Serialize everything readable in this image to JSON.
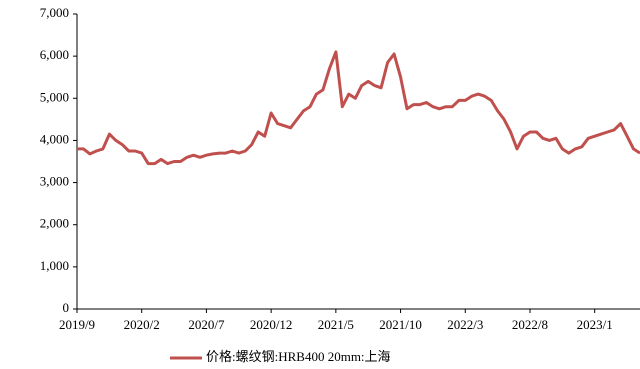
{
  "chart_data": {
    "type": "line",
    "categories": [
      "2019/9",
      null,
      null,
      null,
      null,
      null,
      null,
      null,
      null,
      null,
      "2020/2",
      null,
      null,
      null,
      null,
      null,
      null,
      null,
      null,
      null,
      "2020/7",
      null,
      null,
      null,
      null,
      null,
      null,
      null,
      null,
      null,
      "2020/12",
      null,
      null,
      null,
      null,
      null,
      null,
      null,
      null,
      null,
      "2021/5",
      null,
      null,
      null,
      null,
      null,
      null,
      null,
      null,
      null,
      "2021/10",
      null,
      null,
      null,
      null,
      null,
      null,
      null,
      null,
      null,
      "2022/3",
      null,
      null,
      null,
      null,
      null,
      null,
      null,
      null,
      null,
      "2022/8",
      null,
      null,
      null,
      null,
      null,
      null,
      null,
      null,
      null,
      "2023/1",
      null,
      null,
      null,
      null,
      null,
      null,
      null
    ],
    "series": [
      {
        "name": "价格:螺纹钢:HRB400 20mm:上海",
        "color": "#c0504d",
        "values": [
          3800,
          3800,
          3680,
          3750,
          3800,
          4150,
          4000,
          3900,
          3750,
          3750,
          3700,
          3450,
          3450,
          3550,
          3450,
          3500,
          3500,
          3600,
          3650,
          3600,
          3650,
          3680,
          3700,
          3700,
          3750,
          3700,
          3750,
          3900,
          4200,
          4100,
          4650,
          4400,
          4350,
          4300,
          4500,
          4700,
          4800,
          5100,
          5200,
          5700,
          6100,
          4800,
          5100,
          5000,
          5300,
          5400,
          5300,
          5250,
          5850,
          6050,
          5500,
          4750,
          4850,
          4850,
          4900,
          4800,
          4750,
          4800,
          4800,
          4950,
          4950,
          5050,
          5100,
          5050,
          4950,
          4700,
          4500,
          4200,
          3800,
          4100,
          4200,
          4200,
          4050,
          4000,
          4050,
          3800,
          3700,
          3800,
          3850,
          4050,
          4100,
          4150,
          4200,
          4250,
          4400,
          4100,
          3800,
          3700
        ]
      }
    ],
    "ylim": [
      0,
      7000
    ],
    "yticks": [
      0,
      {
        "value": 1000,
        "label": "1,000"
      },
      {
        "value": 2000,
        "label": "2,000"
      },
      {
        "value": 3000,
        "label": "3,000"
      },
      {
        "value": 4000,
        "label": "4,000"
      },
      {
        "value": 5000,
        "label": "5,000"
      },
      {
        "value": 6000,
        "label": "6,000"
      },
      {
        "value": 7000,
        "label": "7,000"
      }
    ],
    "legend": "bottom"
  }
}
